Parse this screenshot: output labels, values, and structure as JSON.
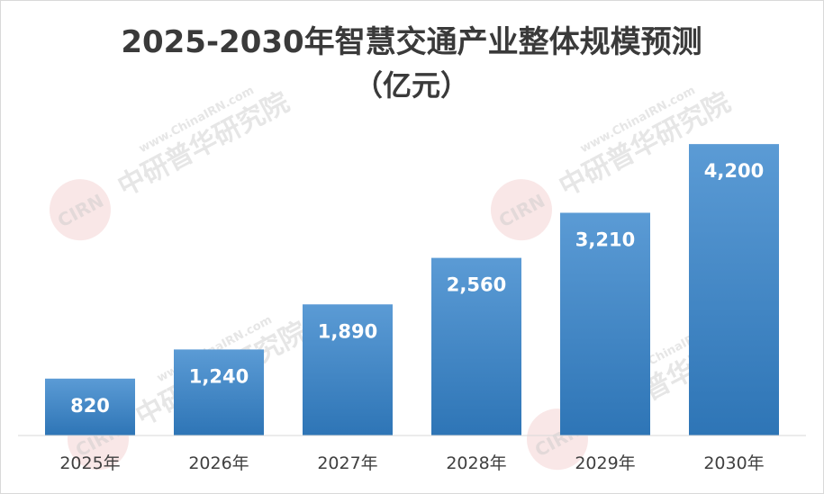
{
  "chart_data": {
    "type": "bar",
    "title": "2025-2030年智慧交通产业整体规模预测",
    "subtitle": "（亿元）",
    "categories": [
      "2025年",
      "2026年",
      "2027年",
      "2028年",
      "2029年",
      "2030年"
    ],
    "values": [
      820,
      1240,
      1890,
      2560,
      3210,
      4200
    ],
    "value_labels": [
      "820",
      "1,240",
      "1,890",
      "2,560",
      "3,210",
      "4,200"
    ],
    "ylim": [
      0,
      4850
    ],
    "grid": false,
    "legend": "none"
  },
  "watermark": {
    "url": "www.ChinaIRN.com",
    "name": "中研普华研究院",
    "logo": "CIRN"
  },
  "colors": {
    "bar_top": "#5b9bd5",
    "bar_bottom": "#2e75b6",
    "title": "#3a3a3a",
    "tick": "#404040",
    "value_label": "#ffffff",
    "axis": "#d9d9d9"
  }
}
